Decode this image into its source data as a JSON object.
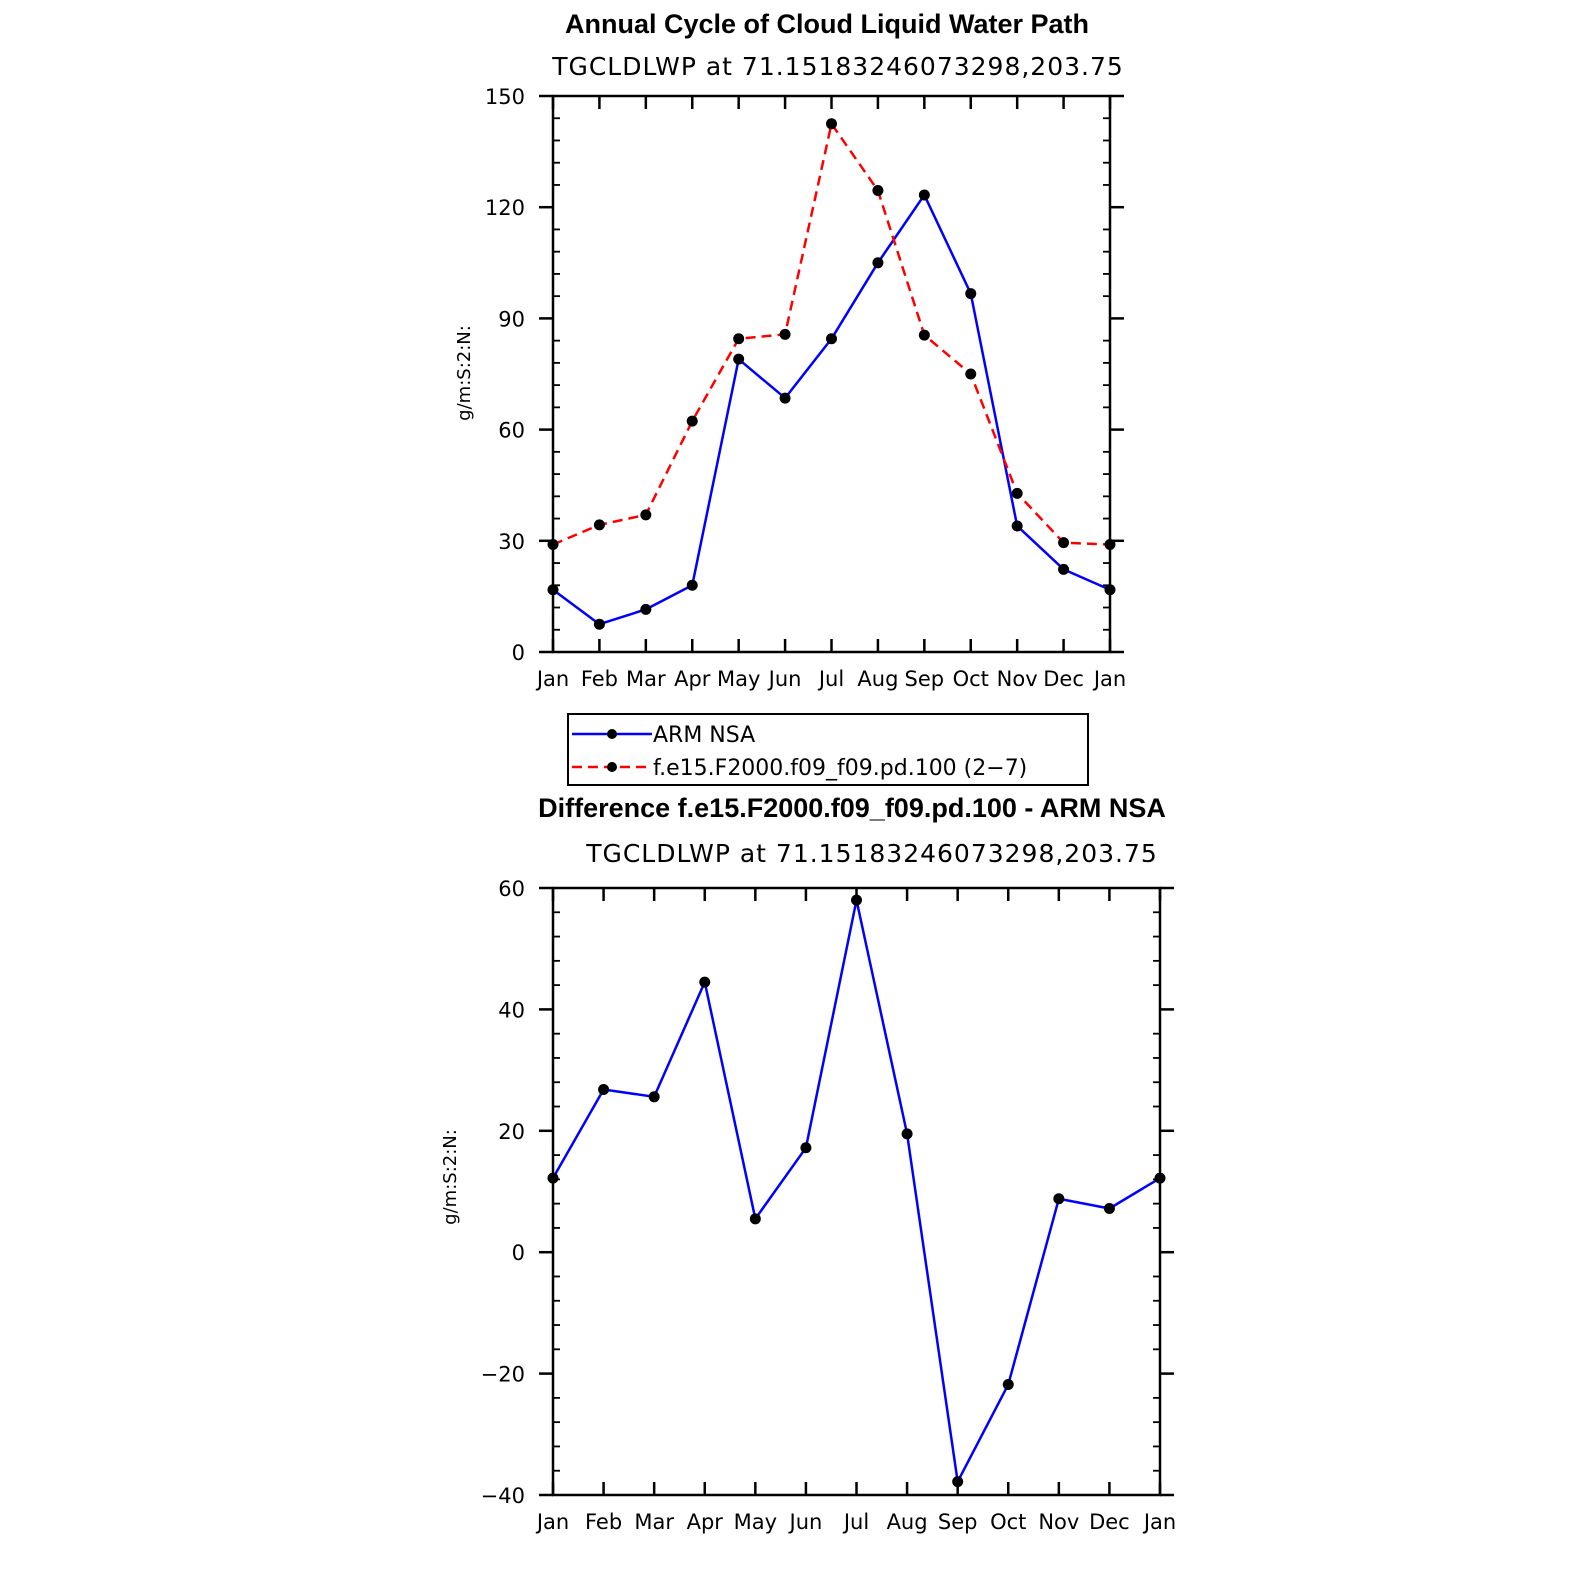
{
  "chart_data": [
    {
      "type": "line",
      "title": "Annual Cycle of Cloud Liquid Water Path",
      "subtitle": "TGCLDLWP at 71.15183246073298,203.75",
      "ylabel": "g/m:S:2:N:",
      "xlabel": "",
      "categories": [
        "Jan",
        "Feb",
        "Mar",
        "Apr",
        "May",
        "Jun",
        "Jul",
        "Aug",
        "Sep",
        "Oct",
        "Nov",
        "Dec",
        "Jan"
      ],
      "ylim": [
        0,
        150
      ],
      "yticks": [
        "0",
        "30",
        "60",
        "90",
        "120",
        "150"
      ],
      "yticks_values": [
        0,
        30,
        60,
        90,
        120,
        150
      ],
      "series": [
        {
          "name": "ARM NSA",
          "color": "#0000ff",
          "dashed": false,
          "values": [
            16.8,
            7.5,
            11.5,
            18.0,
            79.0,
            68.5,
            84.5,
            105.0,
            123.3,
            96.7,
            34.0,
            22.3,
            16.8
          ]
        },
        {
          "name": "f.e15.F2000.f09_f09.pd.100 (2−7)",
          "color": "#ff0000",
          "dashed": true,
          "values": [
            29.0,
            34.3,
            37.0,
            62.3,
            84.5,
            85.7,
            142.5,
            124.5,
            85.5,
            75.0,
            42.8,
            29.5,
            29.0
          ]
        }
      ],
      "legend": {
        "position": "bottom"
      }
    },
    {
      "type": "line",
      "title": "Difference f.e15.F2000.f09_f09.pd.100 - ARM NSA",
      "subtitle": "TGCLDLWP at 71.15183246073298,203.75",
      "ylabel": "g/m:S:2:N:",
      "xlabel": "",
      "categories": [
        "Jan",
        "Feb",
        "Mar",
        "Apr",
        "May",
        "Jun",
        "Jul",
        "Aug",
        "Sep",
        "Oct",
        "Nov",
        "Dec",
        "Jan"
      ],
      "ylim": [
        -40,
        60
      ],
      "yticks": [
        "−40",
        "−20",
        "0",
        "20",
        "40",
        "60"
      ],
      "yticks_values": [
        -40,
        -20,
        0,
        20,
        40,
        60
      ],
      "series": [
        {
          "name": "Difference",
          "color": "#0000ff",
          "dashed": false,
          "values": [
            12.2,
            26.8,
            25.6,
            44.5,
            5.5,
            17.2,
            58.0,
            19.5,
            -37.8,
            -21.8,
            8.8,
            7.2,
            12.2
          ]
        }
      ]
    }
  ]
}
